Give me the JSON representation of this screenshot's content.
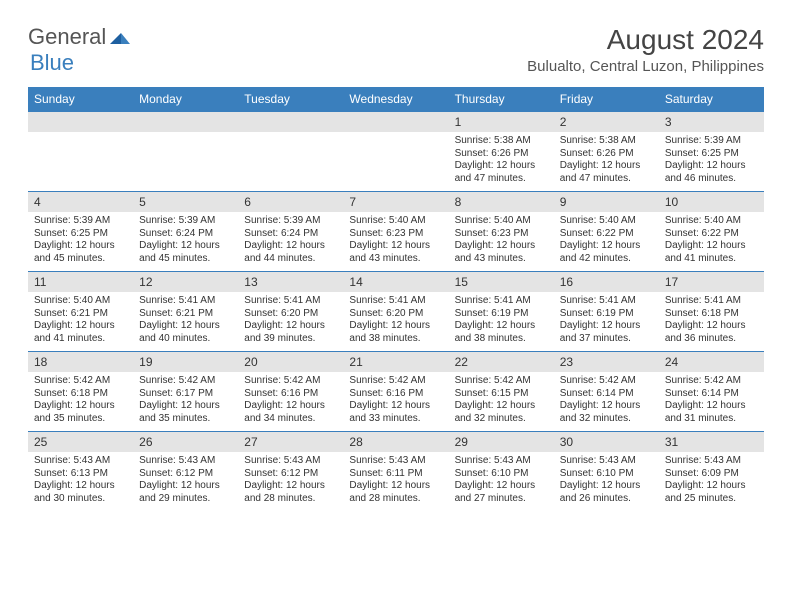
{
  "brand": {
    "general": "General",
    "blue": "Blue"
  },
  "title": "August 2024",
  "location": "Bulualto, Central Luzon, Philippines",
  "colors": {
    "header_bg": "#3a7fbd",
    "header_text": "#ffffff",
    "daynum_bg": "#e4e4e4",
    "text": "#333333",
    "row_border": "#3a7fbd"
  },
  "weekdays": [
    "Sunday",
    "Monday",
    "Tuesday",
    "Wednesday",
    "Thursday",
    "Friday",
    "Saturday"
  ],
  "weeks": [
    [
      {
        "empty": true
      },
      {
        "empty": true
      },
      {
        "empty": true
      },
      {
        "empty": true
      },
      {
        "day": "1",
        "sunrise": "Sunrise: 5:38 AM",
        "sunset": "Sunset: 6:26 PM",
        "daylight": "Daylight: 12 hours and 47 minutes."
      },
      {
        "day": "2",
        "sunrise": "Sunrise: 5:38 AM",
        "sunset": "Sunset: 6:26 PM",
        "daylight": "Daylight: 12 hours and 47 minutes."
      },
      {
        "day": "3",
        "sunrise": "Sunrise: 5:39 AM",
        "sunset": "Sunset: 6:25 PM",
        "daylight": "Daylight: 12 hours and 46 minutes."
      }
    ],
    [
      {
        "day": "4",
        "sunrise": "Sunrise: 5:39 AM",
        "sunset": "Sunset: 6:25 PM",
        "daylight": "Daylight: 12 hours and 45 minutes."
      },
      {
        "day": "5",
        "sunrise": "Sunrise: 5:39 AM",
        "sunset": "Sunset: 6:24 PM",
        "daylight": "Daylight: 12 hours and 45 minutes."
      },
      {
        "day": "6",
        "sunrise": "Sunrise: 5:39 AM",
        "sunset": "Sunset: 6:24 PM",
        "daylight": "Daylight: 12 hours and 44 minutes."
      },
      {
        "day": "7",
        "sunrise": "Sunrise: 5:40 AM",
        "sunset": "Sunset: 6:23 PM",
        "daylight": "Daylight: 12 hours and 43 minutes."
      },
      {
        "day": "8",
        "sunrise": "Sunrise: 5:40 AM",
        "sunset": "Sunset: 6:23 PM",
        "daylight": "Daylight: 12 hours and 43 minutes."
      },
      {
        "day": "9",
        "sunrise": "Sunrise: 5:40 AM",
        "sunset": "Sunset: 6:22 PM",
        "daylight": "Daylight: 12 hours and 42 minutes."
      },
      {
        "day": "10",
        "sunrise": "Sunrise: 5:40 AM",
        "sunset": "Sunset: 6:22 PM",
        "daylight": "Daylight: 12 hours and 41 minutes."
      }
    ],
    [
      {
        "day": "11",
        "sunrise": "Sunrise: 5:40 AM",
        "sunset": "Sunset: 6:21 PM",
        "daylight": "Daylight: 12 hours and 41 minutes."
      },
      {
        "day": "12",
        "sunrise": "Sunrise: 5:41 AM",
        "sunset": "Sunset: 6:21 PM",
        "daylight": "Daylight: 12 hours and 40 minutes."
      },
      {
        "day": "13",
        "sunrise": "Sunrise: 5:41 AM",
        "sunset": "Sunset: 6:20 PM",
        "daylight": "Daylight: 12 hours and 39 minutes."
      },
      {
        "day": "14",
        "sunrise": "Sunrise: 5:41 AM",
        "sunset": "Sunset: 6:20 PM",
        "daylight": "Daylight: 12 hours and 38 minutes."
      },
      {
        "day": "15",
        "sunrise": "Sunrise: 5:41 AM",
        "sunset": "Sunset: 6:19 PM",
        "daylight": "Daylight: 12 hours and 38 minutes."
      },
      {
        "day": "16",
        "sunrise": "Sunrise: 5:41 AM",
        "sunset": "Sunset: 6:19 PM",
        "daylight": "Daylight: 12 hours and 37 minutes."
      },
      {
        "day": "17",
        "sunrise": "Sunrise: 5:41 AM",
        "sunset": "Sunset: 6:18 PM",
        "daylight": "Daylight: 12 hours and 36 minutes."
      }
    ],
    [
      {
        "day": "18",
        "sunrise": "Sunrise: 5:42 AM",
        "sunset": "Sunset: 6:18 PM",
        "daylight": "Daylight: 12 hours and 35 minutes."
      },
      {
        "day": "19",
        "sunrise": "Sunrise: 5:42 AM",
        "sunset": "Sunset: 6:17 PM",
        "daylight": "Daylight: 12 hours and 35 minutes."
      },
      {
        "day": "20",
        "sunrise": "Sunrise: 5:42 AM",
        "sunset": "Sunset: 6:16 PM",
        "daylight": "Daylight: 12 hours and 34 minutes."
      },
      {
        "day": "21",
        "sunrise": "Sunrise: 5:42 AM",
        "sunset": "Sunset: 6:16 PM",
        "daylight": "Daylight: 12 hours and 33 minutes."
      },
      {
        "day": "22",
        "sunrise": "Sunrise: 5:42 AM",
        "sunset": "Sunset: 6:15 PM",
        "daylight": "Daylight: 12 hours and 32 minutes."
      },
      {
        "day": "23",
        "sunrise": "Sunrise: 5:42 AM",
        "sunset": "Sunset: 6:14 PM",
        "daylight": "Daylight: 12 hours and 32 minutes."
      },
      {
        "day": "24",
        "sunrise": "Sunrise: 5:42 AM",
        "sunset": "Sunset: 6:14 PM",
        "daylight": "Daylight: 12 hours and 31 minutes."
      }
    ],
    [
      {
        "day": "25",
        "sunrise": "Sunrise: 5:43 AM",
        "sunset": "Sunset: 6:13 PM",
        "daylight": "Daylight: 12 hours and 30 minutes."
      },
      {
        "day": "26",
        "sunrise": "Sunrise: 5:43 AM",
        "sunset": "Sunset: 6:12 PM",
        "daylight": "Daylight: 12 hours and 29 minutes."
      },
      {
        "day": "27",
        "sunrise": "Sunrise: 5:43 AM",
        "sunset": "Sunset: 6:12 PM",
        "daylight": "Daylight: 12 hours and 28 minutes."
      },
      {
        "day": "28",
        "sunrise": "Sunrise: 5:43 AM",
        "sunset": "Sunset: 6:11 PM",
        "daylight": "Daylight: 12 hours and 28 minutes."
      },
      {
        "day": "29",
        "sunrise": "Sunrise: 5:43 AM",
        "sunset": "Sunset: 6:10 PM",
        "daylight": "Daylight: 12 hours and 27 minutes."
      },
      {
        "day": "30",
        "sunrise": "Sunrise: 5:43 AM",
        "sunset": "Sunset: 6:10 PM",
        "daylight": "Daylight: 12 hours and 26 minutes."
      },
      {
        "day": "31",
        "sunrise": "Sunrise: 5:43 AM",
        "sunset": "Sunset: 6:09 PM",
        "daylight": "Daylight: 12 hours and 25 minutes."
      }
    ]
  ]
}
